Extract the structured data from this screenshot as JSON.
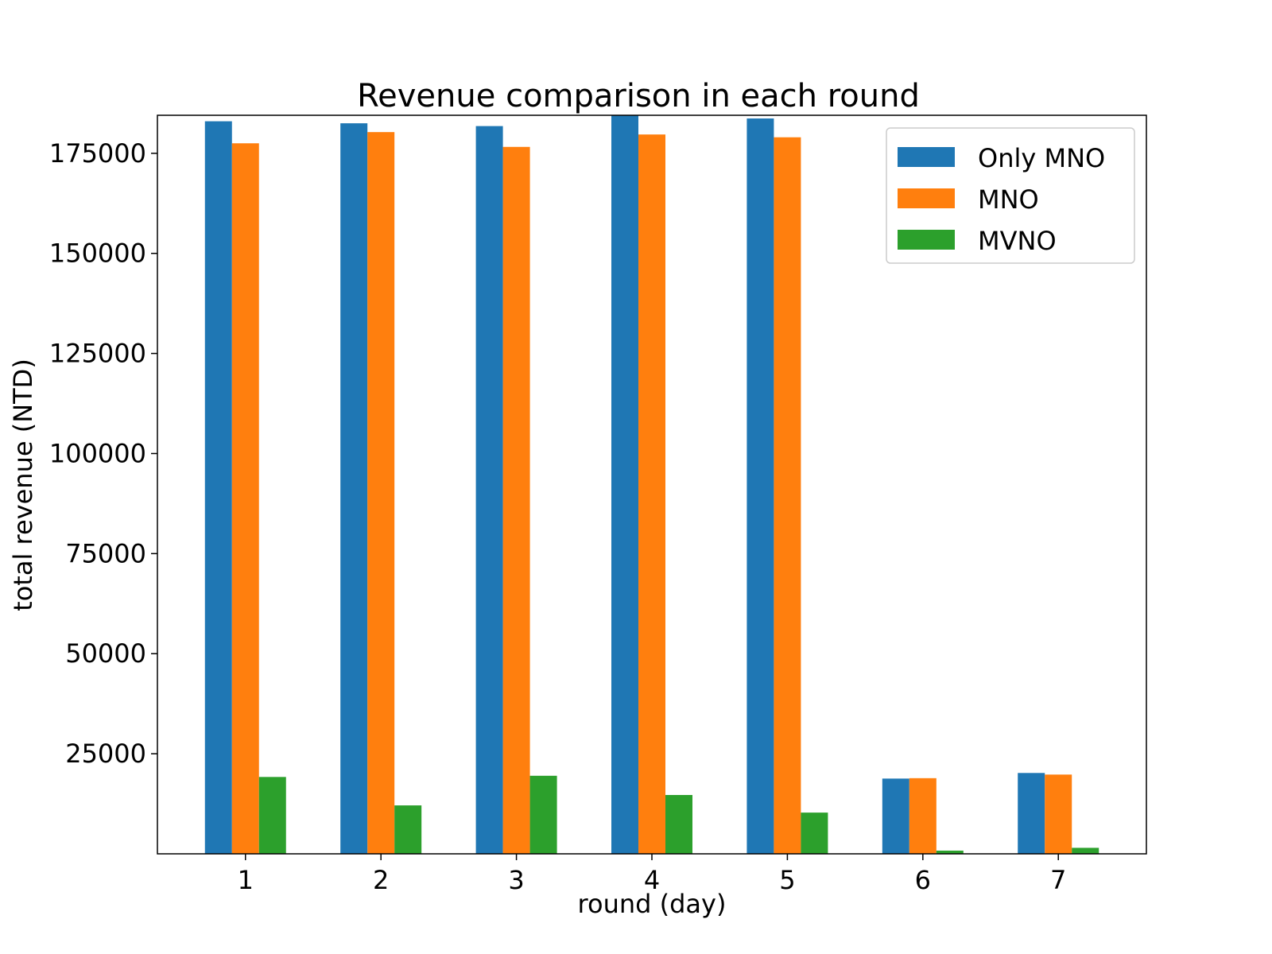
{
  "chart_data": {
    "type": "bar",
    "title": "Revenue comparison in each round",
    "xlabel": "round (day)",
    "ylabel": "total revenue (NTD)",
    "categories": [
      "1",
      "2",
      "3",
      "4",
      "5",
      "6",
      "7"
    ],
    "series": [
      {
        "name": "Only MNO",
        "color": "#1f77b4",
        "values": [
          183000,
          182500,
          181800,
          184500,
          183700,
          18800,
          20200
        ]
      },
      {
        "name": "MNO",
        "color": "#ff7f0e",
        "values": [
          177500,
          180300,
          176600,
          179700,
          179000,
          18900,
          19800
        ]
      },
      {
        "name": "MVNO",
        "color": "#2ca02c",
        "values": [
          19200,
          12100,
          19500,
          14700,
          10300,
          800,
          1500
        ]
      }
    ],
    "ylim": [
      0,
      184500
    ],
    "yticks": [
      "25000",
      "50000",
      "75000",
      "100000",
      "125000",
      "150000",
      "175000"
    ],
    "grid": false,
    "legend_position": "top-right"
  }
}
